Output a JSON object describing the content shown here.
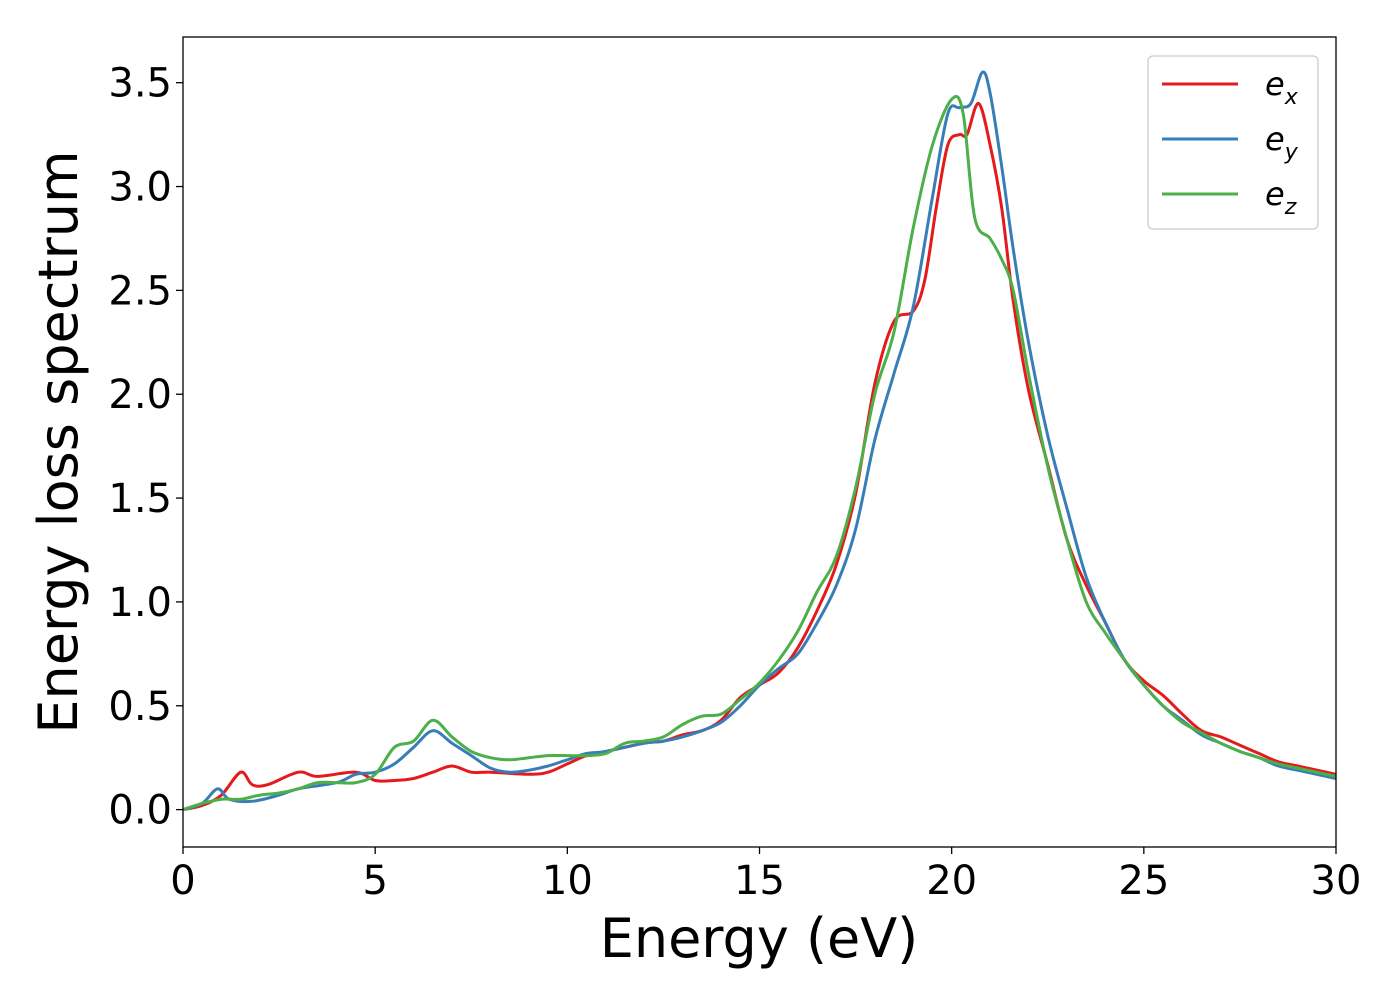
{
  "chart_data": {
    "type": "line",
    "title": "",
    "xlabel": "Energy (eV)",
    "ylabel": "Energy loss spectrum",
    "xlim": [
      0,
      30
    ],
    "ylim": [
      -0.18,
      3.72
    ],
    "xticks": [
      0,
      5,
      10,
      15,
      20,
      25,
      30
    ],
    "xtick_labels": [
      "0",
      "5",
      "10",
      "15",
      "20",
      "25",
      "30"
    ],
    "yticks": [
      0.0,
      0.5,
      1.0,
      1.5,
      2.0,
      2.5,
      3.0,
      3.5
    ],
    "ytick_labels": [
      "0.0",
      "0.5",
      "1.0",
      "1.5",
      "2.0",
      "2.5",
      "3.0",
      "3.5"
    ],
    "grid": false,
    "legend_position": "top-right",
    "series": [
      {
        "name": "e_x",
        "base": "e",
        "sub": "x",
        "color": "#e41a1c",
        "points": [
          [
            0,
            0
          ],
          [
            0.5,
            0.02
          ],
          [
            1.0,
            0.07
          ],
          [
            1.5,
            0.18
          ],
          [
            1.8,
            0.12
          ],
          [
            2.2,
            0.12
          ],
          [
            3.0,
            0.18
          ],
          [
            3.5,
            0.16
          ],
          [
            4.5,
            0.18
          ],
          [
            5.0,
            0.14
          ],
          [
            5.5,
            0.14
          ],
          [
            6.0,
            0.15
          ],
          [
            6.5,
            0.18
          ],
          [
            7.0,
            0.21
          ],
          [
            7.5,
            0.18
          ],
          [
            8.0,
            0.18
          ],
          [
            9.0,
            0.17
          ],
          [
            9.5,
            0.18
          ],
          [
            10.0,
            0.22
          ],
          [
            10.5,
            0.26
          ],
          [
            11.0,
            0.28
          ],
          [
            12.0,
            0.32
          ],
          [
            12.5,
            0.33
          ],
          [
            13.0,
            0.36
          ],
          [
            13.5,
            0.38
          ],
          [
            14.0,
            0.43
          ],
          [
            14.5,
            0.54
          ],
          [
            15.0,
            0.6
          ],
          [
            15.5,
            0.66
          ],
          [
            16.0,
            0.78
          ],
          [
            16.5,
            0.96
          ],
          [
            17.0,
            1.18
          ],
          [
            17.5,
            1.52
          ],
          [
            18.0,
            2.05
          ],
          [
            18.5,
            2.35
          ],
          [
            19.0,
            2.4
          ],
          [
            19.3,
            2.55
          ],
          [
            19.6,
            2.9
          ],
          [
            19.9,
            3.2
          ],
          [
            20.2,
            3.25
          ],
          [
            20.4,
            3.25
          ],
          [
            20.7,
            3.4
          ],
          [
            21.0,
            3.2
          ],
          [
            21.3,
            2.9
          ],
          [
            21.6,
            2.45
          ],
          [
            22.0,
            2.02
          ],
          [
            22.5,
            1.66
          ],
          [
            23.0,
            1.3
          ],
          [
            23.5,
            1.08
          ],
          [
            24.0,
            0.9
          ],
          [
            24.5,
            0.72
          ],
          [
            25.0,
            0.62
          ],
          [
            25.5,
            0.55
          ],
          [
            26.0,
            0.46
          ],
          [
            26.5,
            0.38
          ],
          [
            27.0,
            0.35
          ],
          [
            27.5,
            0.31
          ],
          [
            28.0,
            0.27
          ],
          [
            28.5,
            0.23
          ],
          [
            29.0,
            0.21
          ],
          [
            30.0,
            0.17
          ]
        ]
      },
      {
        "name": "e_y",
        "base": "e",
        "sub": "y",
        "color": "#377eb8",
        "points": [
          [
            0,
            0
          ],
          [
            0.5,
            0.03
          ],
          [
            0.9,
            0.1
          ],
          [
            1.2,
            0.05
          ],
          [
            1.8,
            0.04
          ],
          [
            2.5,
            0.07
          ],
          [
            3.0,
            0.1
          ],
          [
            4.0,
            0.13
          ],
          [
            4.5,
            0.17
          ],
          [
            5.0,
            0.18
          ],
          [
            5.5,
            0.22
          ],
          [
            6.0,
            0.3
          ],
          [
            6.5,
            0.38
          ],
          [
            7.0,
            0.32
          ],
          [
            7.5,
            0.26
          ],
          [
            8.0,
            0.2
          ],
          [
            8.5,
            0.18
          ],
          [
            9.0,
            0.19
          ],
          [
            9.5,
            0.21
          ],
          [
            10.0,
            0.24
          ],
          [
            10.5,
            0.27
          ],
          [
            11.0,
            0.28
          ],
          [
            12.0,
            0.32
          ],
          [
            12.5,
            0.33
          ],
          [
            13.0,
            0.35
          ],
          [
            13.5,
            0.38
          ],
          [
            14.0,
            0.42
          ],
          [
            14.5,
            0.5
          ],
          [
            15.0,
            0.6
          ],
          [
            15.5,
            0.68
          ],
          [
            16.0,
            0.75
          ],
          [
            16.5,
            0.9
          ],
          [
            17.0,
            1.08
          ],
          [
            17.5,
            1.35
          ],
          [
            18.0,
            1.78
          ],
          [
            18.5,
            2.1
          ],
          [
            19.0,
            2.42
          ],
          [
            19.5,
            2.95
          ],
          [
            19.9,
            3.35
          ],
          [
            20.2,
            3.38
          ],
          [
            20.5,
            3.4
          ],
          [
            20.8,
            3.55
          ],
          [
            21.0,
            3.45
          ],
          [
            21.3,
            3.1
          ],
          [
            21.6,
            2.7
          ],
          [
            22.0,
            2.25
          ],
          [
            22.5,
            1.8
          ],
          [
            23.0,
            1.45
          ],
          [
            23.5,
            1.12
          ],
          [
            24.0,
            0.9
          ],
          [
            24.5,
            0.72
          ],
          [
            25.0,
            0.6
          ],
          [
            25.5,
            0.5
          ],
          [
            26.0,
            0.43
          ],
          [
            26.5,
            0.36
          ],
          [
            27.0,
            0.32
          ],
          [
            27.5,
            0.28
          ],
          [
            28.0,
            0.25
          ],
          [
            28.5,
            0.21
          ],
          [
            29.0,
            0.19
          ],
          [
            30.0,
            0.15
          ]
        ]
      },
      {
        "name": "e_z",
        "base": "e",
        "sub": "z",
        "color": "#4daf4a",
        "points": [
          [
            0,
            0
          ],
          [
            0.5,
            0.03
          ],
          [
            1.0,
            0.05
          ],
          [
            1.5,
            0.05
          ],
          [
            2.0,
            0.07
          ],
          [
            2.5,
            0.08
          ],
          [
            3.0,
            0.1
          ],
          [
            3.5,
            0.13
          ],
          [
            4.0,
            0.13
          ],
          [
            4.5,
            0.13
          ],
          [
            5.0,
            0.17
          ],
          [
            5.5,
            0.3
          ],
          [
            6.0,
            0.33
          ],
          [
            6.5,
            0.43
          ],
          [
            7.0,
            0.35
          ],
          [
            7.5,
            0.28
          ],
          [
            8.0,
            0.25
          ],
          [
            8.5,
            0.24
          ],
          [
            9.0,
            0.25
          ],
          [
            9.5,
            0.26
          ],
          [
            10.0,
            0.26
          ],
          [
            10.5,
            0.26
          ],
          [
            11.0,
            0.27
          ],
          [
            11.5,
            0.32
          ],
          [
            12.0,
            0.33
          ],
          [
            12.5,
            0.35
          ],
          [
            13.0,
            0.41
          ],
          [
            13.5,
            0.45
          ],
          [
            14.0,
            0.46
          ],
          [
            14.5,
            0.53
          ],
          [
            15.0,
            0.61
          ],
          [
            15.5,
            0.72
          ],
          [
            16.0,
            0.86
          ],
          [
            16.5,
            1.05
          ],
          [
            17.0,
            1.22
          ],
          [
            17.5,
            1.55
          ],
          [
            18.0,
            2.0
          ],
          [
            18.5,
            2.3
          ],
          [
            19.0,
            2.8
          ],
          [
            19.5,
            3.2
          ],
          [
            20.0,
            3.42
          ],
          [
            20.3,
            3.35
          ],
          [
            20.6,
            2.85
          ],
          [
            21.0,
            2.75
          ],
          [
            21.3,
            2.65
          ],
          [
            21.6,
            2.5
          ],
          [
            22.0,
            2.1
          ],
          [
            22.5,
            1.65
          ],
          [
            23.0,
            1.3
          ],
          [
            23.5,
            1.0
          ],
          [
            24.0,
            0.85
          ],
          [
            24.5,
            0.72
          ],
          [
            25.0,
            0.6
          ],
          [
            25.5,
            0.5
          ],
          [
            26.0,
            0.42
          ],
          [
            26.5,
            0.37
          ],
          [
            27.0,
            0.32
          ],
          [
            27.5,
            0.28
          ],
          [
            28.0,
            0.25
          ],
          [
            28.5,
            0.22
          ],
          [
            29.0,
            0.2
          ],
          [
            30.0,
            0.16
          ]
        ]
      }
    ]
  }
}
